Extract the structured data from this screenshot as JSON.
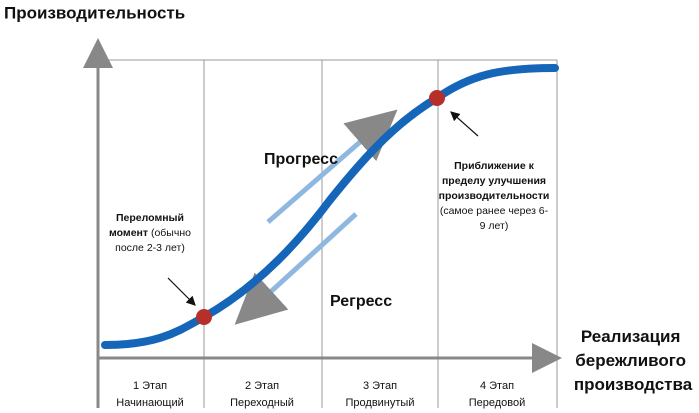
{
  "title": "Производительность",
  "x_axis_label": [
    "Реализация",
    "бережливого",
    "производства"
  ],
  "stages": [
    {
      "number": "1 Этап",
      "name": "Начинающий"
    },
    {
      "number": "2 Этап",
      "name": "Переходный"
    },
    {
      "number": "3 Этап",
      "name": "Продвинутый"
    },
    {
      "number": "4 Этап",
      "name": "Передовой"
    }
  ],
  "progress_label": "Прогресс",
  "regress_label": "Регресс",
  "turning_point_note": [
    [
      {
        "text": "Переломный",
        "bold": true
      }
    ],
    [
      {
        "text": "момент",
        "bold": true
      },
      {
        "text": " (обычно",
        "bold": false
      }
    ],
    [
      {
        "text": "после 2-3 лет)",
        "bold": false
      }
    ]
  ],
  "limit_note": [
    [
      {
        "text": "Приближение к",
        "bold": true
      }
    ],
    [
      {
        "text": "пределу улучшения",
        "bold": true
      }
    ],
    [
      {
        "text": "производительности",
        "bold": true
      }
    ],
    [
      {
        "text": "(самое ранее через 6-",
        "bold": false
      }
    ],
    [
      {
        "text": "9 лет)",
        "bold": false
      }
    ]
  ]
}
